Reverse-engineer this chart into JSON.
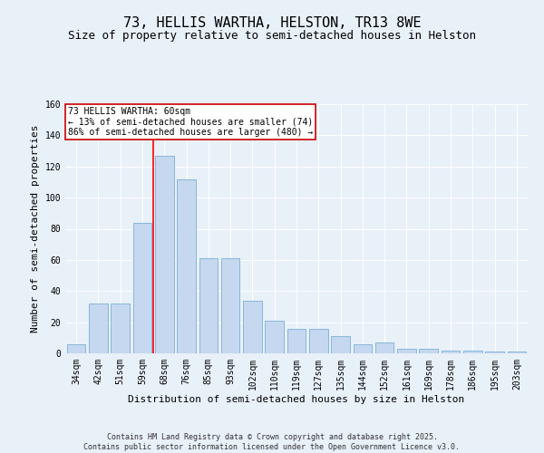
{
  "title": "73, HELLIS WARTHA, HELSTON, TR13 8WE",
  "subtitle": "Size of property relative to semi-detached houses in Helston",
  "xlabel": "Distribution of semi-detached houses by size in Helston",
  "ylabel": "Number of semi-detached properties",
  "categories": [
    "34sqm",
    "42sqm",
    "51sqm",
    "59sqm",
    "68sqm",
    "76sqm",
    "85sqm",
    "93sqm",
    "102sqm",
    "110sqm",
    "119sqm",
    "127sqm",
    "135sqm",
    "144sqm",
    "152sqm",
    "161sqm",
    "169sqm",
    "178sqm",
    "186sqm",
    "195sqm",
    "203sqm"
  ],
  "values": [
    6,
    32,
    32,
    84,
    127,
    112,
    61,
    61,
    34,
    21,
    16,
    16,
    11,
    6,
    7,
    3,
    3,
    2,
    2,
    1,
    1
  ],
  "bar_color": "#c5d8f0",
  "bar_edge_color": "#7bafd4",
  "red_line_x": 3.5,
  "red_line_label": "73 HELLIS WARTHA: 60sqm",
  "pct_smaller": 13,
  "pct_smaller_n": 74,
  "pct_larger": 86,
  "pct_larger_n": 480,
  "annotation_box_color": "#ffffff",
  "annotation_box_edge": "#cc0000",
  "background_color": "#e8f0f8",
  "plot_bg_color": "#e8f0f8",
  "ylim": [
    0,
    160
  ],
  "yticks": [
    0,
    20,
    40,
    60,
    80,
    100,
    120,
    140,
    160
  ],
  "footer": "Contains HM Land Registry data © Crown copyright and database right 2025.\nContains public sector information licensed under the Open Government Licence v3.0.",
  "title_fontsize": 11,
  "subtitle_fontsize": 9,
  "axis_fontsize": 8,
  "tick_fontsize": 7,
  "footer_fontsize": 6
}
